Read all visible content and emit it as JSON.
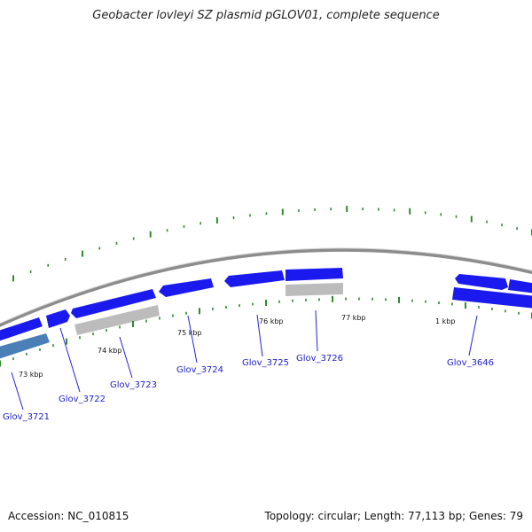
{
  "title": "Geobacter lovleyi SZ plasmid pGLOV01, complete sequence",
  "footer": {
    "accession": "Accession: NC_010815",
    "summary": "Topology: circular; Length: 77,113 bp; Genes: 79"
  },
  "colors": {
    "backbone": "#8c8c8c",
    "gene_forward": "#1a1aee",
    "gene_reverse": "#1a1aee",
    "gene_other": "#bcbcbc",
    "gene_teal": "#4a7fb5",
    "tick": "#2d8a2d",
    "label": "#1d1dcc"
  },
  "scale": {
    "tick_labels": [
      "73 kbp",
      "74 kbp",
      "75 kbp",
      "76 kbp",
      "77 kbp",
      "1 kbp"
    ]
  },
  "gene_labels": [
    "Glov_3721",
    "Glov_3722",
    "Glov_3723",
    "Glov_3724",
    "Glov_3725",
    "Glov_3726",
    "Glov_3646"
  ]
}
